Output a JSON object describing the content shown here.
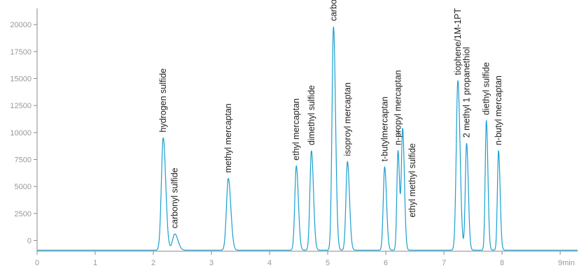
{
  "chart_data": {
    "type": "line",
    "title": "",
    "xlabel": "",
    "ylabel": "",
    "x_unit": "min",
    "xlim": [
      0,
      9.3
    ],
    "ylim": [
      -1000,
      21500
    ],
    "grid": false,
    "legend": "none",
    "x_ticks": [
      "0",
      "1",
      "2",
      "3",
      "4",
      "5",
      "6",
      "7",
      "8",
      "9"
    ],
    "y_ticks": [
      "0",
      "2500",
      "5000",
      "7500",
      "10000",
      "12500",
      "15000",
      "17500",
      "20000"
    ],
    "baseline": -900,
    "colors": {
      "line": "#1a9fd0",
      "axis": "#888888",
      "tick_text": "#999999",
      "label_text": "#222222"
    },
    "peaks": [
      {
        "name": "hydrogen sulfide",
        "rt": 2.17,
        "height": 9500,
        "width": 0.032,
        "label_pos": "above"
      },
      {
        "name": "carbonyl sulfide",
        "rt": 2.37,
        "height": 600,
        "width": 0.04,
        "label_pos": "above"
      },
      {
        "name": "methyl mercaptan",
        "rt": 3.29,
        "height": 5750,
        "width": 0.032,
        "label_pos": "above"
      },
      {
        "name": "ethyl mercaptan",
        "rt": 4.46,
        "height": 6900,
        "width": 0.026,
        "label_pos": "above"
      },
      {
        "name": "dimethyl sulfide",
        "rt": 4.72,
        "height": 8300,
        "width": 0.026,
        "label_pos": "above"
      },
      {
        "name": "carbon disulfide",
        "rt": 5.1,
        "height": 19800,
        "width": 0.026,
        "label_pos": "above"
      },
      {
        "name": "isoproyl mercaptan",
        "rt": 5.34,
        "height": 7300,
        "width": 0.026,
        "label_pos": "above"
      },
      {
        "name": "t-butylmercaptan",
        "rt": 5.98,
        "height": 6800,
        "width": 0.024,
        "label_pos": "above"
      },
      {
        "name": "n-propyl mercaptan",
        "rt": 6.21,
        "height": 8300,
        "width": 0.02,
        "label_pos": "above"
      },
      {
        "name": "ethyl methyl sulfide",
        "rt": 6.29,
        "height": 10300,
        "width": 0.022,
        "label_pos": "below"
      },
      {
        "name": "tiophene/1M-1PT",
        "rt": 7.24,
        "height": 14800,
        "width": 0.028,
        "label_pos": "above"
      },
      {
        "name": "2 methyl 1 propanethiol",
        "rt": 7.39,
        "height": 9000,
        "width": 0.022,
        "label_pos": "above"
      },
      {
        "name": "diethyl sulfide",
        "rt": 7.73,
        "height": 11100,
        "width": 0.02,
        "label_pos": "above"
      },
      {
        "name": "n-butyl mercaptan",
        "rt": 7.94,
        "height": 8300,
        "width": 0.02,
        "label_pos": "above"
      }
    ]
  }
}
